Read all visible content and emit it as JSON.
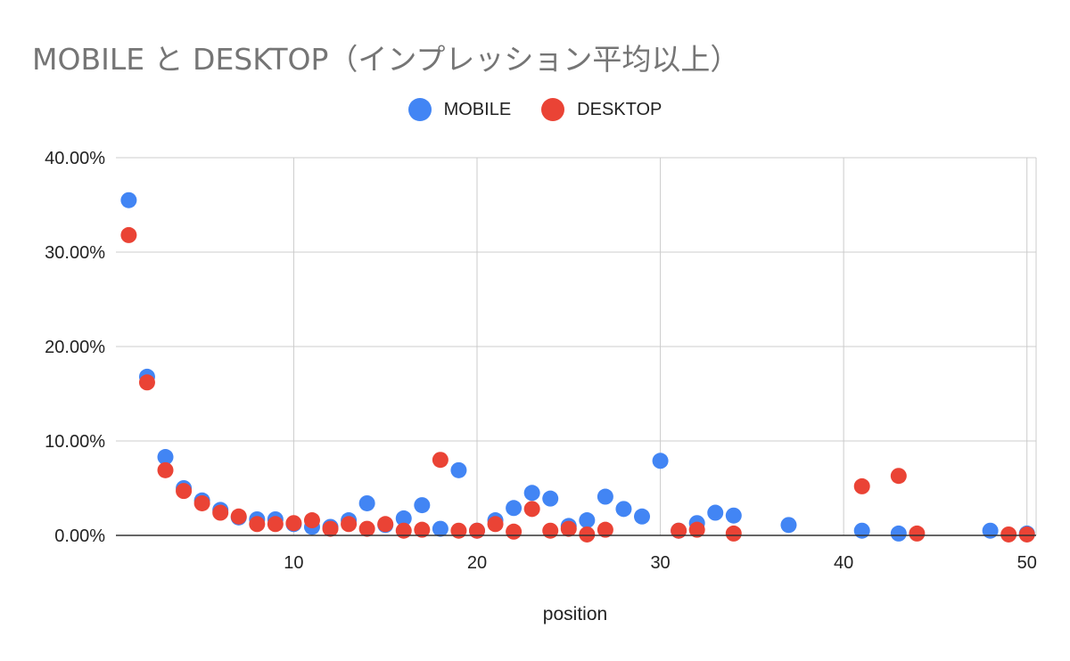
{
  "chart_data": {
    "type": "scatter",
    "title": "MOBILE と DESKTOP（インプレッション平均以上）",
    "xlabel": "position",
    "ylabel": "",
    "xlim": [
      0.3,
      50.5
    ],
    "ylim": [
      0,
      0.4
    ],
    "x_ticks": [
      10,
      20,
      30,
      40,
      50
    ],
    "y_ticks": [
      0,
      0.1,
      0.2,
      0.3,
      0.4
    ],
    "y_tick_labels": [
      "0.00%",
      "10.00%",
      "20.00%",
      "30.00%",
      "40.00%"
    ],
    "grid": true,
    "legend_position": "top",
    "series": [
      {
        "name": "MOBILE",
        "color": "#4285f4",
        "points": [
          [
            1,
            0.355
          ],
          [
            2,
            0.168
          ],
          [
            3,
            0.083
          ],
          [
            4,
            0.05
          ],
          [
            5,
            0.037
          ],
          [
            6,
            0.027
          ],
          [
            7,
            0.019
          ],
          [
            8,
            0.017
          ],
          [
            9,
            0.017
          ],
          [
            10,
            0.012
          ],
          [
            11,
            0.009
          ],
          [
            12,
            0.009
          ],
          [
            13,
            0.016
          ],
          [
            14,
            0.034
          ],
          [
            15,
            0.011
          ],
          [
            16,
            0.018
          ],
          [
            17,
            0.032
          ],
          [
            18,
            0.007
          ],
          [
            19,
            0.069
          ],
          [
            20,
            0.005
          ],
          [
            21,
            0.016
          ],
          [
            22,
            0.029
          ],
          [
            23,
            0.045
          ],
          [
            24,
            0.039
          ],
          [
            25,
            0.01
          ],
          [
            26,
            0.016
          ],
          [
            27,
            0.041
          ],
          [
            28,
            0.028
          ],
          [
            29,
            0.02
          ],
          [
            30,
            0.079
          ],
          [
            31,
            0.005
          ],
          [
            32,
            0.013
          ],
          [
            33,
            0.024
          ],
          [
            34,
            0.021
          ],
          [
            37,
            0.011
          ],
          [
            41,
            0.005
          ],
          [
            43,
            0.002
          ],
          [
            48,
            0.005
          ],
          [
            50,
            0.002
          ]
        ]
      },
      {
        "name": "DESKTOP",
        "color": "#ea4335",
        "points": [
          [
            1,
            0.318
          ],
          [
            2,
            0.162
          ],
          [
            3,
            0.069
          ],
          [
            4,
            0.047
          ],
          [
            5,
            0.034
          ],
          [
            6,
            0.024
          ],
          [
            7,
            0.02
          ],
          [
            8,
            0.012
          ],
          [
            9,
            0.012
          ],
          [
            10,
            0.013
          ],
          [
            11,
            0.016
          ],
          [
            12,
            0.007
          ],
          [
            13,
            0.012
          ],
          [
            14,
            0.007
          ],
          [
            15,
            0.012
          ],
          [
            16,
            0.005
          ],
          [
            17,
            0.006
          ],
          [
            18,
            0.08
          ],
          [
            19,
            0.005
          ],
          [
            20,
            0.005
          ],
          [
            21,
            0.012
          ],
          [
            22,
            0.004
          ],
          [
            23,
            0.028
          ],
          [
            24,
            0.005
          ],
          [
            25,
            0.007
          ],
          [
            26,
            0.001
          ],
          [
            27,
            0.006
          ],
          [
            31,
            0.005
          ],
          [
            32,
            0.006
          ],
          [
            34,
            0.002
          ],
          [
            41,
            0.052
          ],
          [
            43,
            0.063
          ],
          [
            44,
            0.002
          ],
          [
            49,
            0.001
          ],
          [
            50,
            0.001
          ]
        ]
      }
    ]
  }
}
